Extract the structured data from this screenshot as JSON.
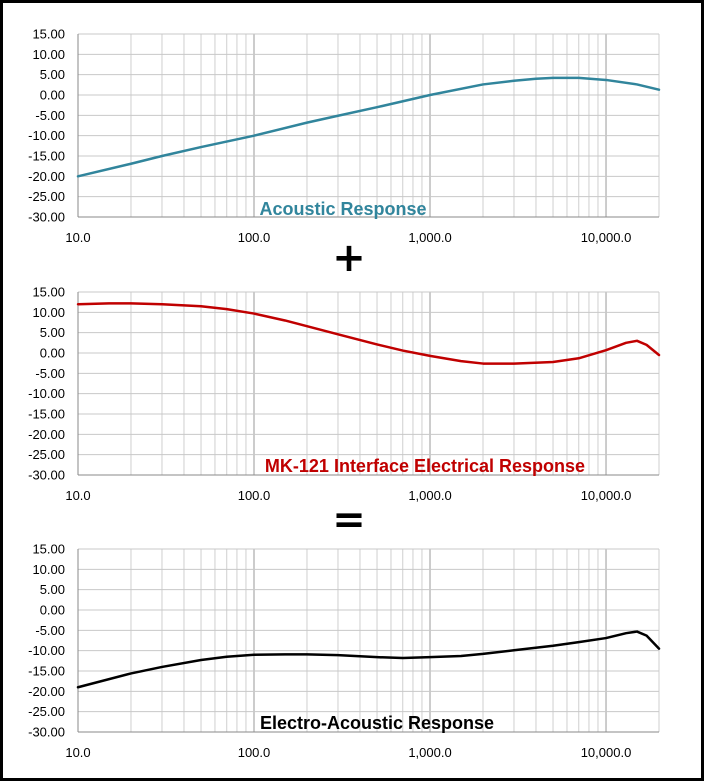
{
  "operators": [
    "+",
    "="
  ],
  "chart_data": [
    {
      "type": "line",
      "title": "Acoustic Response",
      "color": "#31859C",
      "x_scale": "log",
      "xlim": [
        10,
        20000
      ],
      "ylim": [
        -30,
        15
      ],
      "x_ticks": [
        10,
        100,
        1000,
        10000
      ],
      "x_tick_labels": [
        "10.0",
        "100.0",
        "1,000.0",
        "10,000.0"
      ],
      "y_ticks": [
        15,
        10,
        5,
        0,
        -5,
        -10,
        -15,
        -20,
        -25,
        -30
      ],
      "y_tick_labels": [
        "15.00",
        "10.00",
        "5.00",
        "0.00",
        "-5.00",
        "-10.00",
        "-15.00",
        "-20.00",
        "-25.00",
        "-30.00"
      ],
      "grid": true,
      "series": [
        {
          "x": [
            10,
            20,
            30,
            50,
            100,
            200,
            300,
            500,
            1000,
            2000,
            3000,
            4000,
            5000,
            7000,
            10000,
            15000,
            20000
          ],
          "y": [
            -20,
            -16.9,
            -15,
            -12.8,
            -10,
            -6.8,
            -5.1,
            -3,
            0,
            2.6,
            3.5,
            4,
            4.2,
            4.2,
            3.7,
            2.6,
            1.3
          ]
        }
      ]
    },
    {
      "type": "line",
      "title": "MK-121 Interface Electrical Response",
      "color": "#C00000",
      "x_scale": "log",
      "xlim": [
        10,
        20000
      ],
      "ylim": [
        -30,
        15
      ],
      "x_ticks": [
        10,
        100,
        1000,
        10000
      ],
      "x_tick_labels": [
        "10.0",
        "100.0",
        "1,000.0",
        "10,000.0"
      ],
      "y_ticks": [
        15,
        10,
        5,
        0,
        -5,
        -10,
        -15,
        -20,
        -25,
        -30
      ],
      "y_tick_labels": [
        "15.00",
        "10.00",
        "5.00",
        "0.00",
        "-5.00",
        "-10.00",
        "-15.00",
        "-20.00",
        "-25.00",
        "-30.00"
      ],
      "grid": true,
      "series": [
        {
          "x": [
            10,
            15,
            20,
            30,
            50,
            70,
            100,
            150,
            200,
            300,
            500,
            700,
            1000,
            1500,
            2000,
            3000,
            5000,
            7000,
            10000,
            13000,
            15000,
            17000,
            20000
          ],
          "y": [
            12,
            12.2,
            12.2,
            12,
            11.5,
            10.8,
            9.7,
            8,
            6.6,
            4.6,
            2.1,
            0.6,
            -0.7,
            -2,
            -2.6,
            -2.6,
            -2.2,
            -1.3,
            0.7,
            2.5,
            3,
            2,
            -0.5
          ]
        }
      ]
    },
    {
      "type": "line",
      "title": "Electro-Acoustic Response",
      "color": "#000000",
      "x_scale": "log",
      "xlim": [
        10,
        20000
      ],
      "ylim": [
        -30,
        15
      ],
      "x_ticks": [
        10,
        100,
        1000,
        10000
      ],
      "x_tick_labels": [
        "10.0",
        "100.0",
        "1,000.0",
        "10,000.0"
      ],
      "y_ticks": [
        15,
        10,
        5,
        0,
        -5,
        -10,
        -15,
        -20,
        -25,
        -30
      ],
      "y_tick_labels": [
        "15.00",
        "10.00",
        "5.00",
        "0.00",
        "-5.00",
        "-10.00",
        "-15.00",
        "-20.00",
        "-25.00",
        "-30.00"
      ],
      "grid": true,
      "series": [
        {
          "x": [
            10,
            20,
            30,
            50,
            70,
            100,
            150,
            200,
            300,
            500,
            700,
            1000,
            1500,
            2000,
            3000,
            5000,
            7000,
            10000,
            13000,
            15000,
            17000,
            20000
          ],
          "y": [
            -19,
            -15.6,
            -14,
            -12.3,
            -11.5,
            -11,
            -10.9,
            -10.9,
            -11.1,
            -11.6,
            -11.8,
            -11.6,
            -11.3,
            -10.8,
            -9.9,
            -8.8,
            -7.9,
            -6.9,
            -5.7,
            -5.3,
            -6.3,
            -9.5
          ]
        }
      ]
    }
  ]
}
